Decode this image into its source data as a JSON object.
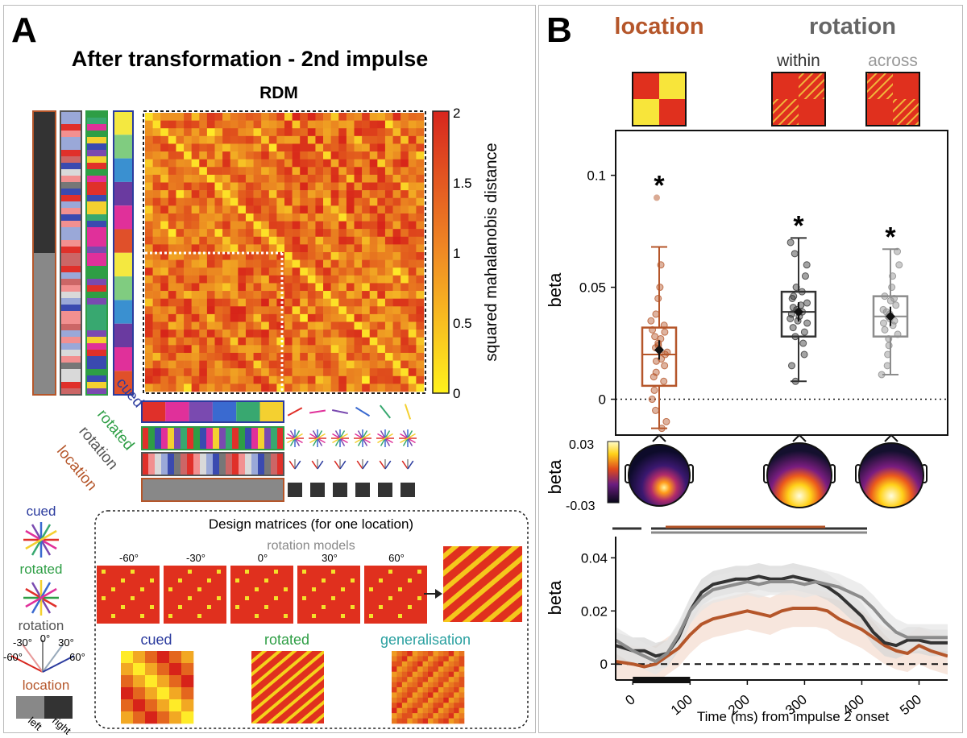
{
  "panelA": {
    "letter": "A",
    "title": "After transformation - 2nd impulse",
    "rdm_label": "RDM",
    "colorbar": {
      "ticks": [
        "2",
        "1.5",
        "1",
        "0.5",
        "0"
      ],
      "label": "squared mahalanobis distance"
    },
    "row_labels": [
      "cued",
      "rotated",
      "rotation",
      "location"
    ],
    "design_title": "Design matrices (for one location)",
    "rotation_models_label": "rotation models",
    "rotation_angles": [
      "-60°",
      "-30°",
      "0°",
      "30°",
      "60°"
    ],
    "bottom_models": [
      "cued",
      "rotated",
      "generalisation"
    ],
    "legend": {
      "cued": "cued",
      "rotated": "rotated",
      "rotation": "rotation",
      "rotation_ticks": [
        "-30°",
        "0°",
        "30°",
        "-60°",
        "60°"
      ],
      "location": "location",
      "left": "left",
      "right": "right"
    }
  },
  "panelB": {
    "letter": "B",
    "location": "location",
    "rotation": "rotation",
    "within": "within",
    "across": "across",
    "topomap_label": "beta",
    "topomap_range": [
      "0.03",
      "-0.03"
    ]
  },
  "colors": {
    "location": "#b5562a",
    "within": "#333333",
    "across": "#8c8c8c",
    "cued": "#2b3b9e",
    "rotated": "#2e9e45",
    "rotation": "#555555",
    "generalisation": "#2aa0a0"
  },
  "chart_data": [
    {
      "type": "box",
      "title": "",
      "xlabel": "",
      "ylabel": "beta",
      "ylim": [
        -0.016,
        0.12
      ],
      "yticks": [
        "0.1",
        "0.05",
        "0"
      ],
      "categories": [
        "location",
        "within",
        "across"
      ],
      "boxes": [
        {
          "name": "location",
          "min": -0.013,
          "q1": 0.006,
          "median": 0.02,
          "q3": 0.032,
          "max": 0.068,
          "mean": 0.022,
          "outlier": 0.09,
          "significant": true
        },
        {
          "name": "within",
          "min": 0.008,
          "q1": 0.028,
          "median": 0.039,
          "q3": 0.048,
          "max": 0.072,
          "mean": 0.039,
          "outlier": null,
          "significant": true
        },
        {
          "name": "across",
          "min": 0.011,
          "q1": 0.028,
          "median": 0.037,
          "q3": 0.046,
          "max": 0.067,
          "mean": 0.037,
          "outlier": null,
          "significant": true
        }
      ],
      "sig_marker": "*"
    },
    {
      "type": "line",
      "title": "",
      "xlabel": "Time (ms) from impulse 2 onset",
      "ylabel": "beta",
      "xlim": [
        -30,
        550
      ],
      "ylim": [
        -0.006,
        0.048
      ],
      "xticks": [
        "0",
        "100",
        "200",
        "300",
        "400",
        "500"
      ],
      "yticks": [
        "0.04",
        "0.02",
        "0"
      ],
      "x": [
        -30,
        0,
        20,
        40,
        60,
        80,
        100,
        120,
        140,
        160,
        180,
        200,
        220,
        240,
        260,
        280,
        300,
        320,
        340,
        360,
        380,
        400,
        420,
        440,
        460,
        480,
        500,
        520,
        550
      ],
      "series": [
        {
          "name": "location",
          "values": [
            0.001,
            0.0,
            -0.001,
            0.0,
            0.003,
            0.006,
            0.011,
            0.015,
            0.017,
            0.018,
            0.019,
            0.02,
            0.019,
            0.018,
            0.02,
            0.021,
            0.021,
            0.021,
            0.02,
            0.017,
            0.015,
            0.013,
            0.01,
            0.007,
            0.005,
            0.004,
            0.007,
            0.005,
            0.003
          ]
        },
        {
          "name": "within",
          "values": [
            0.007,
            0.005,
            0.005,
            0.003,
            0.004,
            0.01,
            0.02,
            0.027,
            0.03,
            0.031,
            0.032,
            0.032,
            0.033,
            0.032,
            0.032,
            0.033,
            0.032,
            0.031,
            0.029,
            0.026,
            0.022,
            0.018,
            0.012,
            0.008,
            0.007,
            0.009,
            0.009,
            0.008,
            0.008
          ]
        },
        {
          "name": "across",
          "values": [
            0.009,
            0.005,
            0.003,
            0.001,
            0.004,
            0.011,
            0.02,
            0.025,
            0.028,
            0.029,
            0.03,
            0.031,
            0.03,
            0.031,
            0.031,
            0.031,
            0.03,
            0.031,
            0.03,
            0.029,
            0.027,
            0.025,
            0.021,
            0.016,
            0.012,
            0.01,
            0.01,
            0.01,
            0.01
          ]
        }
      ],
      "impulse_bar": [
        0,
        100
      ]
    }
  ]
}
